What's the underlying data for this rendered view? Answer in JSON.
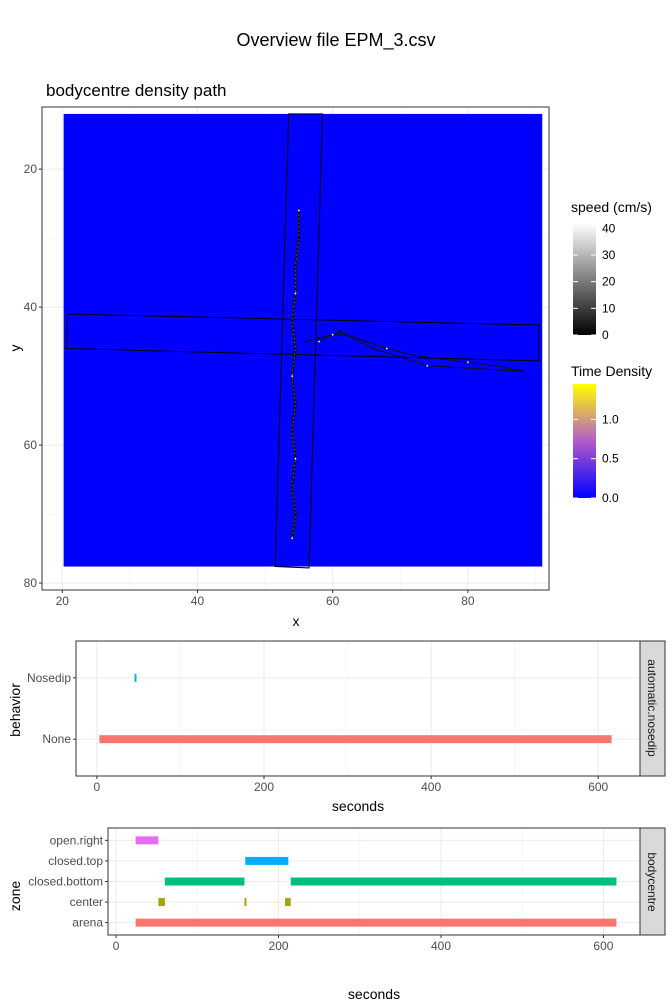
{
  "page_title": "Overview file EPM_3.csv",
  "colors": {
    "arena_fill": "#0000ff",
    "grid": "#ebebeb",
    "panel_border": "#333333",
    "strip_bg": "#d9d9d9"
  },
  "chart_data": [
    {
      "type": "scatter",
      "title": "bodycentre density path",
      "xlabel": "x",
      "ylabel": "y",
      "xlim": [
        17,
        92
      ],
      "ylim": [
        81,
        11
      ],
      "y_reversed": true,
      "x_ticks": [
        "20",
        "40",
        "60",
        "80"
      ],
      "y_ticks": [
        "20",
        "40",
        "60",
        "80"
      ],
      "grid": true,
      "arena": {
        "x": [
          20.2,
          91
        ],
        "y": [
          12,
          77.6
        ]
      },
      "maze_outline": {
        "vertical_arm": [
          [
            53.5,
            12
          ],
          [
            58.5,
            12
          ],
          [
            56.5,
            77.8
          ],
          [
            51.5,
            77.6
          ]
        ],
        "horizontal_arm": [
          [
            20.8,
            41
          ],
          [
            90.5,
            42.6
          ],
          [
            90.5,
            47.8
          ],
          [
            20.6,
            46
          ]
        ]
      },
      "path_points": [
        [
          55,
          26
        ],
        [
          55,
          30
        ],
        [
          54.5,
          34
        ],
        [
          54.5,
          38
        ],
        [
          54,
          42
        ],
        [
          54.5,
          46
        ],
        [
          54,
          50
        ],
        [
          54.5,
          54
        ],
        [
          54,
          58
        ],
        [
          54.5,
          62
        ],
        [
          54,
          66
        ],
        [
          54.5,
          70
        ],
        [
          54,
          73.5
        ],
        [
          56,
          45
        ],
        [
          58,
          44.5
        ],
        [
          60,
          44
        ],
        [
          62,
          44
        ],
        [
          65,
          45
        ],
        [
          68,
          46
        ],
        [
          72,
          47
        ],
        [
          76,
          47.5
        ],
        [
          80,
          48
        ],
        [
          84,
          48.5
        ],
        [
          88,
          49.3
        ],
        [
          74,
          48.5
        ],
        [
          66,
          46
        ],
        [
          61,
          43.5
        ],
        [
          58,
          45
        ]
      ],
      "legends": [
        {
          "title": "speed (cm/s)",
          "kind": "gradient",
          "colors": [
            "#000000",
            "#ffffff"
          ],
          "range": [
            0,
            42
          ],
          "ticks": [
            "0",
            "10",
            "20",
            "30",
            "40"
          ],
          "tick_values": [
            0,
            10,
            20,
            30,
            40
          ]
        },
        {
          "title": "Time Density",
          "kind": "gradient",
          "colors": [
            "#0000ff",
            "#b35cc8",
            "#ffff00"
          ],
          "range": [
            0,
            1.45
          ],
          "ticks": [
            "0.0",
            "0.5",
            "1.0"
          ],
          "tick_values": [
            0,
            0.5,
            1.0
          ]
        }
      ]
    },
    {
      "type": "bar",
      "orientation": "horizontal-segments",
      "xlabel": "seconds",
      "ylabel": "behavior",
      "xlim": [
        -25,
        650
      ],
      "x_ticks": [
        "0",
        "200",
        "400",
        "600"
      ],
      "categories": [
        "Nosedip",
        "None"
      ],
      "strip_label": "automatic.nosedip",
      "series": [
        {
          "category": "Nosedip",
          "color": "#00bfc4",
          "segments": [
            [
              45,
              47
            ]
          ]
        },
        {
          "category": "None",
          "color": "#f8766d",
          "segments": [
            [
              3,
              616
            ]
          ]
        }
      ]
    },
    {
      "type": "bar",
      "orientation": "horizontal-segments",
      "xlabel": "seconds",
      "ylabel": "zone",
      "xlim": [
        -10,
        645
      ],
      "x_ticks": [
        "0",
        "200",
        "400",
        "600"
      ],
      "categories": [
        "open.right",
        "closed.top",
        "closed.bottom",
        "center",
        "arena"
      ],
      "strip_label": "bodycentre",
      "series": [
        {
          "category": "open.right",
          "color": "#e76bf3",
          "segments": [
            [
              24,
              52
            ]
          ]
        },
        {
          "category": "closed.top",
          "color": "#00b0f6",
          "segments": [
            [
              159,
              212
            ]
          ]
        },
        {
          "category": "closed.bottom",
          "color": "#00bf7d",
          "segments": [
            [
              60,
              158
            ],
            [
              215,
              616
            ]
          ]
        },
        {
          "category": "center",
          "color": "#a3a500",
          "segments": [
            [
              52,
              60
            ],
            [
              158,
              160
            ],
            [
              208,
              215
            ]
          ]
        },
        {
          "category": "arena",
          "color": "#f8766d",
          "segments": [
            [
              24,
              616
            ]
          ]
        }
      ]
    }
  ]
}
